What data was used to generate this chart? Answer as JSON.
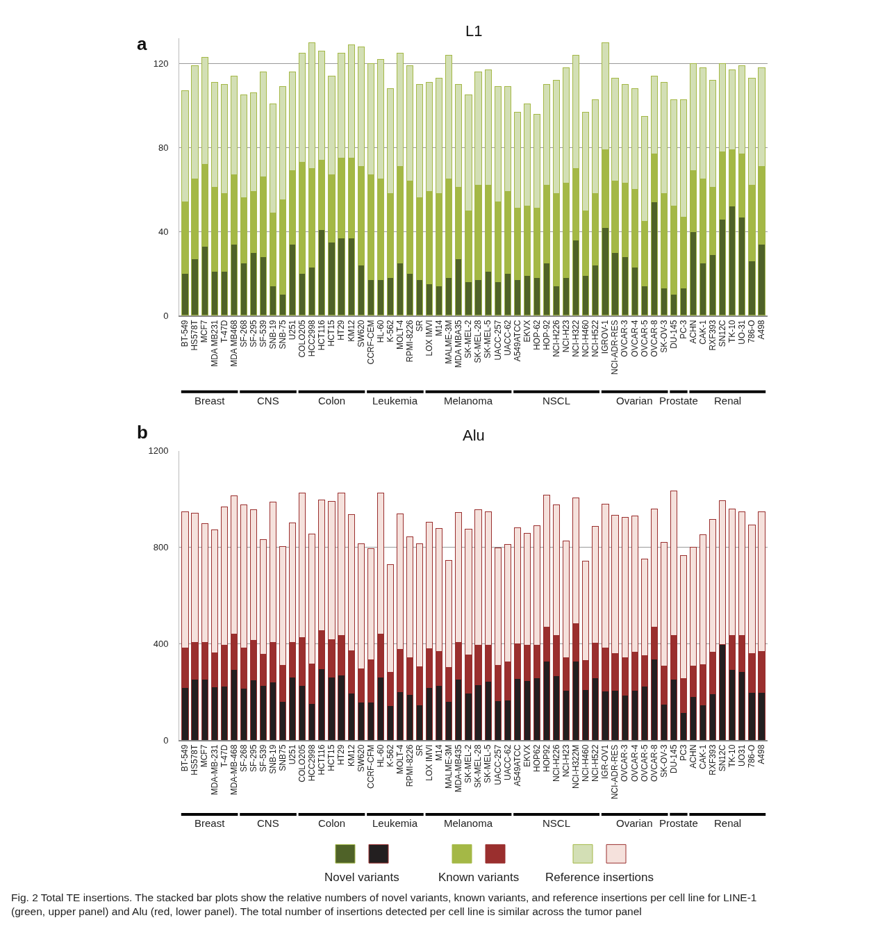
{
  "chart_data": [
    {
      "type": "bar",
      "title": "L1",
      "stacked": true,
      "grid": "y",
      "legend": "bottom",
      "categories": [
        "BT-549",
        "HS578T",
        "MCF7",
        "MDA MB231",
        "T-47D",
        "MDA MB468",
        "SF-268",
        "SF-295",
        "SF-539",
        "SNB-19",
        "SNB-75",
        "U251",
        "COLO205",
        "HCC2998",
        "HCT116",
        "HCT15",
        "HT29",
        "KM12",
        "SW620",
        "CCRF-CEM",
        "HL-60",
        "K-562",
        "MOLT-4",
        "RPMI-8226",
        "SR",
        "LOX IMVI",
        "M14",
        "MALME-3M",
        "MDA MBA35",
        "SK-MEL-2",
        "SK-MEL-28",
        "SK-MEL-5",
        "UACC-257",
        "UACC-62",
        "A549ATCC",
        "EKVX",
        "HOP-62",
        "HOP-92",
        "NCI-H226",
        "NCI-H23",
        "NCI-H322",
        "NCI-H460",
        "NCI-H522",
        "IGROV-1",
        "NCI-ADR-RES",
        "OVCAR-3",
        "OVCAR-4",
        "OVCAR-5",
        "OVCAR-8",
        "SK-OV-3",
        "DU-145",
        "PC-3",
        "ACHN",
        "CAK-1",
        "RXF393",
        "SN12C",
        "TK-10",
        "UO-31",
        "786-O",
        "A498"
      ],
      "ylim": [
        0,
        132
      ],
      "yticks": [
        0,
        40,
        80,
        120
      ],
      "series": [
        {
          "name": "Novel variants",
          "color": "#4f6228",
          "values": [
            20,
            27,
            33,
            21,
            21,
            34,
            25,
            30,
            28,
            14,
            10,
            34,
            20,
            23,
            41,
            35,
            37,
            37,
            24,
            17,
            17,
            18,
            25,
            20,
            17,
            15,
            14,
            18,
            27,
            16,
            17,
            21,
            16,
            20,
            17,
            19,
            18,
            25,
            14,
            18,
            36,
            19,
            24,
            42,
            30,
            28,
            23,
            14,
            54,
            13,
            10,
            13,
            40,
            25,
            29,
            46,
            52,
            47,
            26,
            34
          ]
        },
        {
          "name": "Known variants",
          "color": "#a4b846",
          "values": [
            34,
            38,
            39,
            40,
            37,
            33,
            31,
            29,
            38,
            35,
            45,
            35,
            53,
            47,
            33,
            32,
            38,
            38,
            47,
            50,
            48,
            40,
            46,
            44,
            39,
            44,
            44,
            47,
            34,
            34,
            45,
            41,
            38,
            39,
            34,
            33,
            33,
            37,
            44,
            45,
            34,
            31,
            34,
            37,
            34,
            35,
            37,
            31,
            23,
            45,
            42,
            34,
            29,
            40,
            32,
            32,
            27,
            30,
            36,
            37
          ]
        },
        {
          "name": "Reference insertions",
          "color": "#d3dfb5",
          "values": [
            53,
            54,
            51,
            50,
            52,
            47,
            49,
            47,
            50,
            52,
            54,
            47,
            52,
            60,
            52,
            47,
            50,
            54,
            57,
            53,
            57,
            50,
            54,
            55,
            54,
            52,
            55,
            59,
            49,
            55,
            54,
            55,
            55,
            50,
            46,
            49,
            45,
            48,
            54,
            55,
            54,
            47,
            45,
            51,
            49,
            47,
            48,
            50,
            37,
            53,
            51,
            56,
            51,
            53,
            51,
            42,
            38,
            42,
            51,
            47
          ]
        }
      ],
      "annotations": [
        "a",
        "Breast",
        "CNS",
        "Colon",
        "Leukemia",
        "Melanoma",
        "NSCL",
        "Ovarian",
        "Prostate",
        "Renal"
      ]
    },
    {
      "type": "bar",
      "title": "Alu",
      "stacked": true,
      "grid": "y",
      "categories": [
        "BT-549",
        "HS578T",
        "MCF7",
        "MDA-MB-231",
        "T-47D",
        "MDA-MB-468",
        "SF-268",
        "SF-295",
        "SF-539",
        "SNB-19",
        "SNB75",
        "U251",
        "COLO205",
        "HCC2998",
        "HCT116",
        "HCT15",
        "HT29",
        "KM12",
        "SW620",
        "CCRF-CFM",
        "HL-60",
        "K-562",
        "MOLT-4",
        "RPMI-8226",
        "SR",
        "LOX IMVI",
        "M14",
        "MALME-3M",
        "MDA-MB435",
        "SK-MEL-2",
        "SK-MEL-28",
        "SK-MEL-5",
        "UACC-257",
        "UACC-62",
        "A549ATCC",
        "EKVX",
        "HOP62",
        "HOP92",
        "NCI-H226",
        "NCI-H23",
        "NCI-H322M",
        "NCI-H460",
        "NCI-H522",
        "IGR-OV1",
        "NCI-ADR-RES",
        "OVCAR-3",
        "OVCAR-4",
        "OVCAR-5",
        "OVCAR-8",
        "SK-OV-3",
        "DU-145",
        "PC3",
        "ACHN",
        "CAK-1",
        "RXF393",
        "SN12C",
        "TK-10",
        "UO31",
        "786-O",
        "A498"
      ],
      "ylim": [
        0,
        1200
      ],
      "yticks": [
        0,
        400,
        800,
        1200
      ],
      "series": [
        {
          "color": "#231f20",
          "values": [
            217,
            252,
            252,
            220,
            223,
            292,
            215,
            249,
            226,
            241,
            160,
            260,
            226,
            152,
            295,
            260,
            269,
            195,
            156,
            158,
            262,
            143,
            201,
            189,
            147,
            217,
            226,
            160,
            252,
            196,
            228,
            243,
            163,
            167,
            255,
            248,
            258,
            326,
            266,
            206,
            328,
            209,
            258,
            203,
            206,
            187,
            206,
            224,
            335,
            149,
            252,
            113,
            181,
            147,
            192,
            396,
            292,
            283,
            199,
            199
          ]
        },
        {
          "color": "#9a2f2e",
          "values": [
            165,
            152,
            152,
            142,
            172,
            147,
            167,
            165,
            131,
            163,
            150,
            144,
            199,
            164,
            159,
            156,
            165,
            176,
            141,
            175,
            177,
            137,
            174,
            153,
            157,
            163,
            141,
            142,
            152,
            157,
            166,
            151,
            147,
            158,
            144,
            146,
            136,
            144,
            167,
            136,
            155,
            122,
            143,
            179,
            154,
            156,
            159,
            127,
            135,
            159,
            183,
            143,
            127,
            166,
            173,
            0,
            141,
            150,
            161,
            169
          ]
        },
        {
          "color": "#f5e1dc",
          "values": [
            566,
            536,
            495,
            509,
            573,
            574,
            594,
            541,
            476,
            583,
            493,
            496,
            599,
            538,
            541,
            574,
            590,
            564,
            518,
            461,
            585,
            448,
            563,
            502,
            511,
            524,
            511,
            443,
            539,
            522,
            562,
            554,
            486,
            488,
            483,
            465,
            495,
            545,
            542,
            485,
            521,
            411,
            485,
            596,
            574,
            580,
            565,
            401,
            489,
            511,
            598,
            510,
            491,
            539,
            551,
            598,
            526,
            515,
            532,
            580
          ]
        }
      ],
      "annotations": [
        "b",
        "Breast",
        "CNS",
        "Colon",
        "Leukemia",
        "Melanoma",
        "NSCL",
        "Ovarian",
        "Prostate",
        "Renal",
        "Fig. 2 Total TE insertions. The stacked bar plots show the relative numbers of novel variants, known variants, and reference insertions per cell line for LINE-1 (green, upper panel) and Alu (red, lower panel). The total number of insertions detected per cell line is similar across the tumor panel"
      ]
    }
  ]
}
